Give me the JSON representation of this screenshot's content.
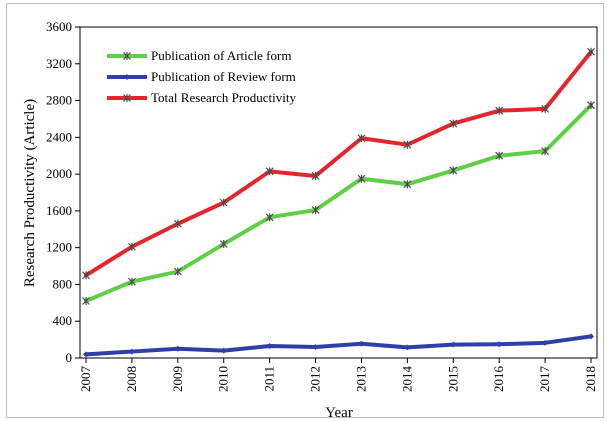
{
  "chart_data": {
    "type": "line",
    "title": "",
    "xlabel": "Year",
    "ylabel": "Research Productivity (Article)",
    "ylim": [
      0,
      3600
    ],
    "yticks": [
      0,
      400,
      800,
      1200,
      1600,
      2000,
      2400,
      2800,
      3200,
      3600
    ],
    "categories": [
      "2007",
      "2008",
      "2009",
      "2010",
      "2011",
      "2012",
      "2013",
      "2014",
      "2015",
      "2016",
      "2017",
      "2018"
    ],
    "grid": false,
    "legend_position": "top-left",
    "series": [
      {
        "name": "Publication of Article form",
        "color": "#5fcf45",
        "marker_color": "#4a4a4a",
        "marker": "asterisk",
        "values": [
          620,
          830,
          940,
          1240,
          1530,
          1610,
          1950,
          1890,
          2040,
          2200,
          2250,
          2750
        ]
      },
      {
        "name": "Publication of Review form",
        "color": "#2f3fa8",
        "marker_color": "#2f3fa8",
        "marker": "diamond",
        "values": [
          40,
          70,
          100,
          80,
          130,
          120,
          155,
          115,
          145,
          150,
          165,
          235
        ]
      },
      {
        "name": "Total Research Productivity",
        "color": "#e3262c",
        "marker_color": "#4a4a4a",
        "marker": "asterisk",
        "values": [
          900,
          1210,
          1460,
          1690,
          2030,
          1980,
          2390,
          2320,
          2550,
          2690,
          2710,
          3330
        ]
      }
    ]
  }
}
